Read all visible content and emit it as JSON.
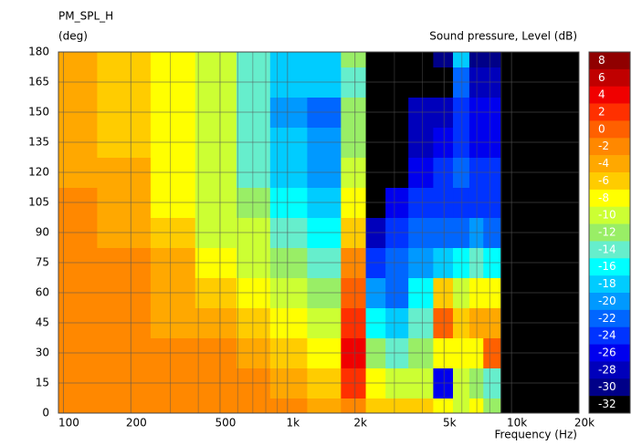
{
  "chart_data": {
    "type": "contour",
    "title": "PM_SPL_H",
    "y_label": "(deg)",
    "z_label": "Sound pressure, Level  (dB)",
    "x_label": "Frequency  (Hz)",
    "log_x": true,
    "grid": true,
    "xlim": [
      95,
      20000
    ],
    "xticks": [
      100,
      200,
      500,
      {
        "value": 1000,
        "label": "1k"
      },
      {
        "value": 2000,
        "label": "2k"
      },
      {
        "value": 5000,
        "label": "5k"
      },
      {
        "value": 10000,
        "label": "10k"
      },
      {
        "value": 20000,
        "label": "20k"
      }
    ],
    "x_minor_grid": [
      300,
      400,
      600,
      700,
      800,
      900,
      3000,
      4000,
      6000,
      7000,
      8000,
      9000
    ],
    "ylim": [
      0,
      180
    ],
    "yticks": [
      0,
      15,
      30,
      45,
      60,
      75,
      90,
      105,
      120,
      135,
      150,
      165,
      180
    ],
    "x": [
      100,
      200,
      300,
      500,
      700,
      1000,
      1500,
      2000,
      2500,
      3000,
      4000,
      5000,
      6000,
      7000,
      8000,
      10000
    ],
    "y": [
      0,
      15,
      30,
      45,
      60,
      75,
      90,
      105,
      120,
      135,
      150,
      165,
      180
    ],
    "z": [
      [
        -2,
        -2,
        -2,
        -2,
        -2,
        -2,
        -4,
        -2,
        -6,
        -6,
        -6,
        -8,
        -10,
        -8,
        -12,
        -40
      ],
      [
        -2,
        -2,
        -2,
        -2,
        -2,
        -4,
        -6,
        2,
        -8,
        -10,
        -10,
        -26,
        -10,
        -12,
        -14,
        -40
      ],
      [
        -2,
        -2,
        -2,
        -2,
        -4,
        -6,
        -8,
        4,
        -12,
        -14,
        -12,
        -8,
        -8,
        -8,
        0,
        -40
      ],
      [
        -2,
        -2,
        -4,
        -4,
        -6,
        -8,
        -10,
        2,
        -16,
        -18,
        -14,
        0,
        -6,
        -4,
        -4,
        -40
      ],
      [
        -2,
        -2,
        -4,
        -6,
        -8,
        -10,
        -12,
        0,
        -20,
        -22,
        -16,
        -6,
        -10,
        -8,
        -8,
        -40
      ],
      [
        -2,
        -2,
        -4,
        -8,
        -10,
        -12,
        -14,
        -2,
        -24,
        -22,
        -20,
        -18,
        -16,
        -14,
        -16,
        -40
      ],
      [
        -2,
        -4,
        -6,
        -10,
        -10,
        -14,
        -16,
        -6,
        -28,
        -24,
        -22,
        -22,
        -22,
        -20,
        -22,
        -40
      ],
      [
        -2,
        -4,
        -8,
        -10,
        -12,
        -16,
        -18,
        -8,
        -40,
        -26,
        -24,
        -24,
        -24,
        -24,
        -24,
        -40
      ],
      [
        -4,
        -4,
        -8,
        -10,
        -14,
        -18,
        -20,
        -10,
        -40,
        -40,
        -26,
        -24,
        -22,
        -24,
        -24,
        -40
      ],
      [
        -4,
        -6,
        -8,
        -10,
        -14,
        -18,
        -20,
        -12,
        -40,
        -40,
        -28,
        -26,
        -24,
        -26,
        -26,
        -40
      ],
      [
        -4,
        -6,
        -8,
        -10,
        -14,
        -20,
        -22,
        -12,
        -40,
        -40,
        -28,
        -28,
        -24,
        -26,
        -26,
        -40
      ],
      [
        -4,
        -6,
        -8,
        -10,
        -14,
        -18,
        -18,
        -14,
        -40,
        -40,
        -32,
        -32,
        -22,
        -28,
        -28,
        -40
      ],
      [
        -4,
        -6,
        -8,
        -10,
        -14,
        -18,
        -18,
        -12,
        -40,
        -40,
        -32,
        -30,
        -18,
        -30,
        -30,
        -40
      ]
    ],
    "levels": [
      8,
      6,
      4,
      2,
      0,
      -2,
      -4,
      -6,
      -8,
      -10,
      -12,
      -14,
      -16,
      -18,
      -20,
      -22,
      -24,
      -26,
      -28,
      -30,
      -32
    ],
    "level_colors": [
      "#900000",
      "#c00000",
      "#f00000",
      "#ff3000",
      "#ff6000",
      "#ff8800",
      "#ffa800",
      "#ffcc00",
      "#ffff00",
      "#ccff33",
      "#99ee66",
      "#66eecc",
      "#00ffff",
      "#00ccff",
      "#0099ff",
      "#0066ff",
      "#0033ff",
      "#0000ee",
      "#0000bb",
      "#000088",
      "#000000"
    ]
  }
}
